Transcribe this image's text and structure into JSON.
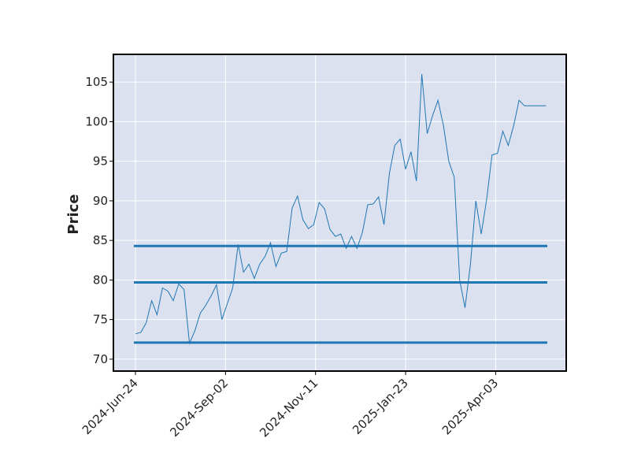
{
  "chart_data": {
    "type": "line",
    "title": "",
    "ylabel": "Price",
    "xlabel": "",
    "ylim": [
      68.5,
      108.5
    ],
    "yticks": [
      70,
      75,
      80,
      85,
      90,
      95,
      100,
      105
    ],
    "xtick_labels": [
      "2024-Jun-24",
      "2024-Sep-02",
      "2024-Nov-11",
      "2025-Jan-23",
      "2025-Apr-03"
    ],
    "xtick_index": [
      0,
      50,
      100,
      150,
      200
    ],
    "grid": true,
    "background": "#dce1ef",
    "line_color": "#1f77b4",
    "series": [
      {
        "type": "line",
        "x": [
          0,
          3,
          6,
          9,
          12,
          15,
          18,
          21,
          24,
          27,
          30,
          33,
          36,
          39,
          42,
          45,
          48,
          51,
          54,
          57,
          60,
          63,
          66,
          69,
          72,
          75,
          78,
          81,
          84,
          87,
          90,
          93,
          96,
          99,
          102,
          105,
          108,
          111,
          114,
          117,
          120,
          123,
          126,
          129,
          132,
          135,
          138,
          141,
          144,
          147,
          150,
          153,
          156,
          159,
          162,
          165,
          168,
          171,
          174,
          177,
          180,
          183,
          186,
          189,
          192,
          195,
          198,
          201,
          204,
          207,
          210,
          213,
          216,
          219,
          222,
          225,
          228
        ],
        "values": [
          73.2,
          73.4,
          74.6,
          77.4,
          75.6,
          79.0,
          78.6,
          77.4,
          79.5,
          78.8,
          72.0,
          73.6,
          75.8,
          76.8,
          78.0,
          79.4,
          75.0,
          77.0,
          79.0,
          84.5,
          81.0,
          82.0,
          80.2,
          82.0,
          83.0,
          84.7,
          81.7,
          83.4,
          83.6,
          89.1,
          90.6,
          87.6,
          86.5,
          87.0,
          89.8,
          89.0,
          86.4,
          85.5,
          85.8,
          84.0,
          85.5,
          84.0,
          86.0,
          89.5,
          89.6,
          90.5,
          87.0,
          93.5,
          97.0,
          97.8,
          94.0,
          96.2,
          92.5,
          106.0,
          98.5,
          100.8,
          102.7,
          99.5,
          95.0,
          93.0,
          80.0,
          76.5,
          82.0,
          90.0,
          85.8,
          90.2,
          95.8,
          96.0,
          98.8,
          97.0,
          99.5,
          102.7,
          102.0,
          102.0,
          102.0,
          102.0,
          102.0
        ]
      }
    ],
    "hlines": [
      72.1,
      79.7,
      84.3
    ],
    "hline_color": "#1f77b4"
  }
}
